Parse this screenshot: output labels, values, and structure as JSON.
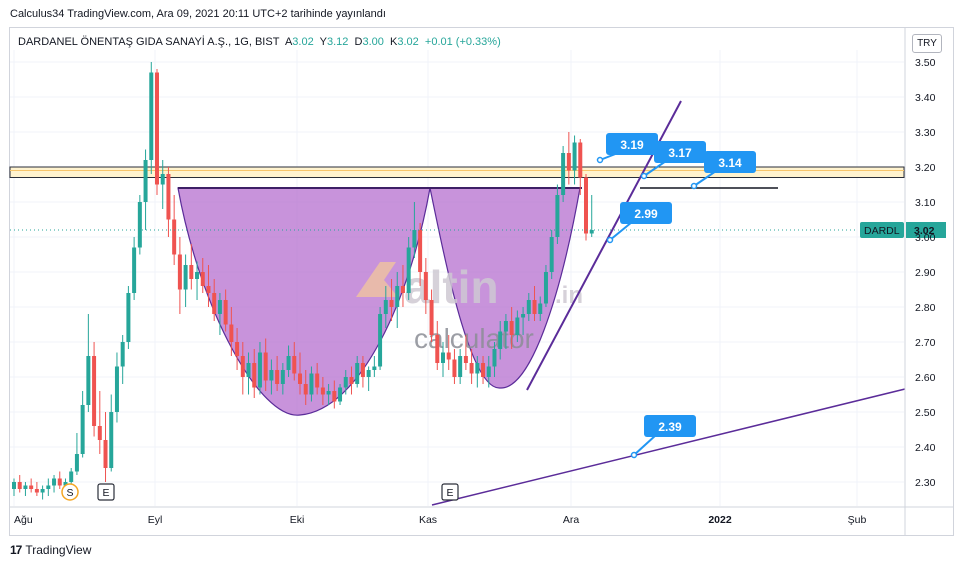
{
  "header": {
    "caption": "Calculus34 TradingView.com, Ara 09, 2021 20:11 UTC+2 tarihinde yayınlandı"
  },
  "legend": {
    "symbol": "DARDANEL ÖNENTAŞ GIDA SANAYİ A.Ş., 1G, BIST",
    "open_label": "A",
    "open_value": "3.02",
    "high_label": "Y",
    "high_value": "3.12",
    "low_label": "D",
    "low_value": "3.00",
    "close_label": "K",
    "close_value": "3.02",
    "change": "+0.01 (+0.33%)"
  },
  "currency_button": "TRY",
  "footer": {
    "brand": "TradingView"
  },
  "watermark": {
    "word": "altin",
    "suffix": ".in",
    "sub": "calculator"
  },
  "chart_data": {
    "type": "candlestick",
    "y_ticks": [
      "3.50",
      "3.40",
      "3.30",
      "3.20",
      "3.10",
      "3.00",
      "2.90",
      "2.80",
      "2.70",
      "2.60",
      "2.50",
      "2.40",
      "2.30"
    ],
    "ylim": [
      2.27,
      3.54
    ],
    "x_ticks": [
      "Ağu",
      "Eyl",
      "Eki",
      "Kas",
      "Ara",
      "2022",
      "Şub"
    ],
    "price_tag": {
      "symbol": "DARDL",
      "value": "3.02"
    },
    "annotations": [
      "3.19",
      "3.17",
      "3.14",
      "2.99",
      "2.39"
    ],
    "event_markers": [
      "S",
      "E",
      "E"
    ],
    "resistance_zone": [
      3.17,
      3.2
    ],
    "neckline": 3.14,
    "colors": {
      "up": "#26a69a",
      "down": "#ef5350",
      "trendline": "#5b2c99",
      "pattern_fill": "#b56fcf",
      "zone": "#fff3cf",
      "label": "#2196f3"
    },
    "candles": [
      {
        "o": 2.28,
        "h": 2.31,
        "l": 2.26,
        "c": 2.3
      },
      {
        "o": 2.3,
        "h": 2.32,
        "l": 2.27,
        "c": 2.28
      },
      {
        "o": 2.28,
        "h": 2.3,
        "l": 2.26,
        "c": 2.29
      },
      {
        "o": 2.29,
        "h": 2.31,
        "l": 2.27,
        "c": 2.28
      },
      {
        "o": 2.28,
        "h": 2.3,
        "l": 2.26,
        "c": 2.27
      },
      {
        "o": 2.27,
        "h": 2.29,
        "l": 2.25,
        "c": 2.28
      },
      {
        "o": 2.28,
        "h": 2.31,
        "l": 2.26,
        "c": 2.29
      },
      {
        "o": 2.29,
        "h": 2.32,
        "l": 2.27,
        "c": 2.31
      },
      {
        "o": 2.31,
        "h": 2.33,
        "l": 2.28,
        "c": 2.29
      },
      {
        "o": 2.29,
        "h": 2.31,
        "l": 2.27,
        "c": 2.3
      },
      {
        "o": 2.3,
        "h": 2.34,
        "l": 2.29,
        "c": 2.33
      },
      {
        "o": 2.33,
        "h": 2.44,
        "l": 2.32,
        "c": 2.38
      },
      {
        "o": 2.38,
        "h": 2.56,
        "l": 2.37,
        "c": 2.52
      },
      {
        "o": 2.52,
        "h": 2.78,
        "l": 2.5,
        "c": 2.66
      },
      {
        "o": 2.66,
        "h": 2.7,
        "l": 2.43,
        "c": 2.46
      },
      {
        "o": 2.46,
        "h": 2.56,
        "l": 2.38,
        "c": 2.42
      },
      {
        "o": 2.42,
        "h": 2.5,
        "l": 2.3,
        "c": 2.34
      },
      {
        "o": 2.34,
        "h": 2.55,
        "l": 2.33,
        "c": 2.5
      },
      {
        "o": 2.5,
        "h": 2.67,
        "l": 2.47,
        "c": 2.63
      },
      {
        "o": 2.63,
        "h": 2.72,
        "l": 2.58,
        "c": 2.7
      },
      {
        "o": 2.7,
        "h": 2.86,
        "l": 2.68,
        "c": 2.84
      },
      {
        "o": 2.84,
        "h": 3.0,
        "l": 2.82,
        "c": 2.97
      },
      {
        "o": 2.97,
        "h": 3.12,
        "l": 2.95,
        "c": 3.1
      },
      {
        "o": 3.1,
        "h": 3.25,
        "l": 3.02,
        "c": 3.22
      },
      {
        "o": 3.22,
        "h": 3.5,
        "l": 3.18,
        "c": 3.47
      },
      {
        "o": 3.47,
        "h": 3.48,
        "l": 3.12,
        "c": 3.15
      },
      {
        "o": 3.15,
        "h": 3.22,
        "l": 3.08,
        "c": 3.18
      },
      {
        "o": 3.18,
        "h": 3.2,
        "l": 3.0,
        "c": 3.05
      },
      {
        "o": 3.05,
        "h": 3.12,
        "l": 2.92,
        "c": 2.95
      },
      {
        "o": 2.95,
        "h": 3.0,
        "l": 2.78,
        "c": 2.85
      },
      {
        "o": 2.85,
        "h": 2.95,
        "l": 2.8,
        "c": 2.92
      },
      {
        "o": 2.92,
        "h": 2.98,
        "l": 2.85,
        "c": 2.88
      },
      {
        "o": 2.88,
        "h": 2.93,
        "l": 2.82,
        "c": 2.9
      },
      {
        "o": 2.9,
        "h": 2.94,
        "l": 2.84,
        "c": 2.86
      },
      {
        "o": 2.86,
        "h": 2.92,
        "l": 2.8,
        "c": 2.84
      },
      {
        "o": 2.84,
        "h": 2.88,
        "l": 2.76,
        "c": 2.78
      },
      {
        "o": 2.78,
        "h": 2.84,
        "l": 2.72,
        "c": 2.82
      },
      {
        "o": 2.82,
        "h": 2.85,
        "l": 2.73,
        "c": 2.75
      },
      {
        "o": 2.75,
        "h": 2.8,
        "l": 2.66,
        "c": 2.7
      },
      {
        "o": 2.7,
        "h": 2.74,
        "l": 2.62,
        "c": 2.66
      },
      {
        "o": 2.66,
        "h": 2.7,
        "l": 2.55,
        "c": 2.6
      },
      {
        "o": 2.6,
        "h": 2.67,
        "l": 2.55,
        "c": 2.64
      },
      {
        "o": 2.64,
        "h": 2.68,
        "l": 2.54,
        "c": 2.57
      },
      {
        "o": 2.57,
        "h": 2.7,
        "l": 2.55,
        "c": 2.67
      },
      {
        "o": 2.67,
        "h": 2.71,
        "l": 2.56,
        "c": 2.59
      },
      {
        "o": 2.59,
        "h": 2.65,
        "l": 2.55,
        "c": 2.62
      },
      {
        "o": 2.62,
        "h": 2.66,
        "l": 2.56,
        "c": 2.58
      },
      {
        "o": 2.58,
        "h": 2.64,
        "l": 2.55,
        "c": 2.62
      },
      {
        "o": 2.62,
        "h": 2.69,
        "l": 2.6,
        "c": 2.66
      },
      {
        "o": 2.66,
        "h": 2.7,
        "l": 2.59,
        "c": 2.61
      },
      {
        "o": 2.61,
        "h": 2.67,
        "l": 2.55,
        "c": 2.58
      },
      {
        "o": 2.58,
        "h": 2.62,
        "l": 2.52,
        "c": 2.55
      },
      {
        "o": 2.55,
        "h": 2.63,
        "l": 2.53,
        "c": 2.61
      },
      {
        "o": 2.61,
        "h": 2.64,
        "l": 2.55,
        "c": 2.57
      },
      {
        "o": 2.57,
        "h": 2.6,
        "l": 2.52,
        "c": 2.55
      },
      {
        "o": 2.55,
        "h": 2.58,
        "l": 2.52,
        "c": 2.56
      },
      {
        "o": 2.56,
        "h": 2.59,
        "l": 2.51,
        "c": 2.53
      },
      {
        "o": 2.53,
        "h": 2.58,
        "l": 2.52,
        "c": 2.57
      },
      {
        "o": 2.57,
        "h": 2.62,
        "l": 2.55,
        "c": 2.6
      },
      {
        "o": 2.6,
        "h": 2.63,
        "l": 2.55,
        "c": 2.58
      },
      {
        "o": 2.58,
        "h": 2.66,
        "l": 2.57,
        "c": 2.64
      },
      {
        "o": 2.64,
        "h": 2.66,
        "l": 2.57,
        "c": 2.6
      },
      {
        "o": 2.6,
        "h": 2.63,
        "l": 2.56,
        "c": 2.62
      },
      {
        "o": 2.62,
        "h": 2.66,
        "l": 2.6,
        "c": 2.63
      },
      {
        "o": 2.63,
        "h": 2.8,
        "l": 2.62,
        "c": 2.78
      },
      {
        "o": 2.78,
        "h": 2.86,
        "l": 2.74,
        "c": 2.82
      },
      {
        "o": 2.82,
        "h": 2.88,
        "l": 2.76,
        "c": 2.8
      },
      {
        "o": 2.8,
        "h": 2.9,
        "l": 2.74,
        "c": 2.86
      },
      {
        "o": 2.86,
        "h": 2.92,
        "l": 2.8,
        "c": 2.84
      },
      {
        "o": 2.84,
        "h": 3.0,
        "l": 2.82,
        "c": 2.97
      },
      {
        "o": 2.97,
        "h": 3.1,
        "l": 2.94,
        "c": 3.02
      },
      {
        "o": 3.02,
        "h": 3.04,
        "l": 2.86,
        "c": 2.9
      },
      {
        "o": 2.9,
        "h": 2.94,
        "l": 2.78,
        "c": 2.82
      },
      {
        "o": 2.82,
        "h": 2.85,
        "l": 2.7,
        "c": 2.72
      },
      {
        "o": 2.72,
        "h": 2.76,
        "l": 2.62,
        "c": 2.64
      },
      {
        "o": 2.64,
        "h": 2.7,
        "l": 2.6,
        "c": 2.67
      },
      {
        "o": 2.67,
        "h": 2.72,
        "l": 2.62,
        "c": 2.65
      },
      {
        "o": 2.65,
        "h": 2.68,
        "l": 2.58,
        "c": 2.6
      },
      {
        "o": 2.6,
        "h": 2.68,
        "l": 2.58,
        "c": 2.66
      },
      {
        "o": 2.66,
        "h": 2.72,
        "l": 2.62,
        "c": 2.64
      },
      {
        "o": 2.64,
        "h": 2.68,
        "l": 2.58,
        "c": 2.61
      },
      {
        "o": 2.61,
        "h": 2.66,
        "l": 2.57,
        "c": 2.64
      },
      {
        "o": 2.64,
        "h": 2.66,
        "l": 2.58,
        "c": 2.6
      },
      {
        "o": 2.6,
        "h": 2.66,
        "l": 2.57,
        "c": 2.63
      },
      {
        "o": 2.63,
        "h": 2.7,
        "l": 2.6,
        "c": 2.68
      },
      {
        "o": 2.68,
        "h": 2.76,
        "l": 2.65,
        "c": 2.73
      },
      {
        "o": 2.73,
        "h": 2.78,
        "l": 2.68,
        "c": 2.76
      },
      {
        "o": 2.76,
        "h": 2.8,
        "l": 2.68,
        "c": 2.72
      },
      {
        "o": 2.72,
        "h": 2.79,
        "l": 2.7,
        "c": 2.77
      },
      {
        "o": 2.77,
        "h": 2.8,
        "l": 2.72,
        "c": 2.78
      },
      {
        "o": 2.78,
        "h": 2.84,
        "l": 2.76,
        "c": 2.82
      },
      {
        "o": 2.82,
        "h": 2.86,
        "l": 2.76,
        "c": 2.78
      },
      {
        "o": 2.78,
        "h": 2.83,
        "l": 2.76,
        "c": 2.81
      },
      {
        "o": 2.81,
        "h": 2.92,
        "l": 2.8,
        "c": 2.9
      },
      {
        "o": 2.9,
        "h": 3.02,
        "l": 2.88,
        "c": 3.0
      },
      {
        "o": 3.0,
        "h": 3.15,
        "l": 2.98,
        "c": 3.12
      },
      {
        "o": 3.12,
        "h": 3.26,
        "l": 3.1,
        "c": 3.24
      },
      {
        "o": 3.24,
        "h": 3.3,
        "l": 3.15,
        "c": 3.19
      },
      {
        "o": 3.19,
        "h": 3.29,
        "l": 3.15,
        "c": 3.27
      },
      {
        "o": 3.27,
        "h": 3.28,
        "l": 3.12,
        "c": 3.17
      },
      {
        "o": 3.17,
        "h": 3.18,
        "l": 2.99,
        "c": 3.01
      },
      {
        "o": 3.01,
        "h": 3.12,
        "l": 3.0,
        "c": 3.02
      }
    ]
  }
}
